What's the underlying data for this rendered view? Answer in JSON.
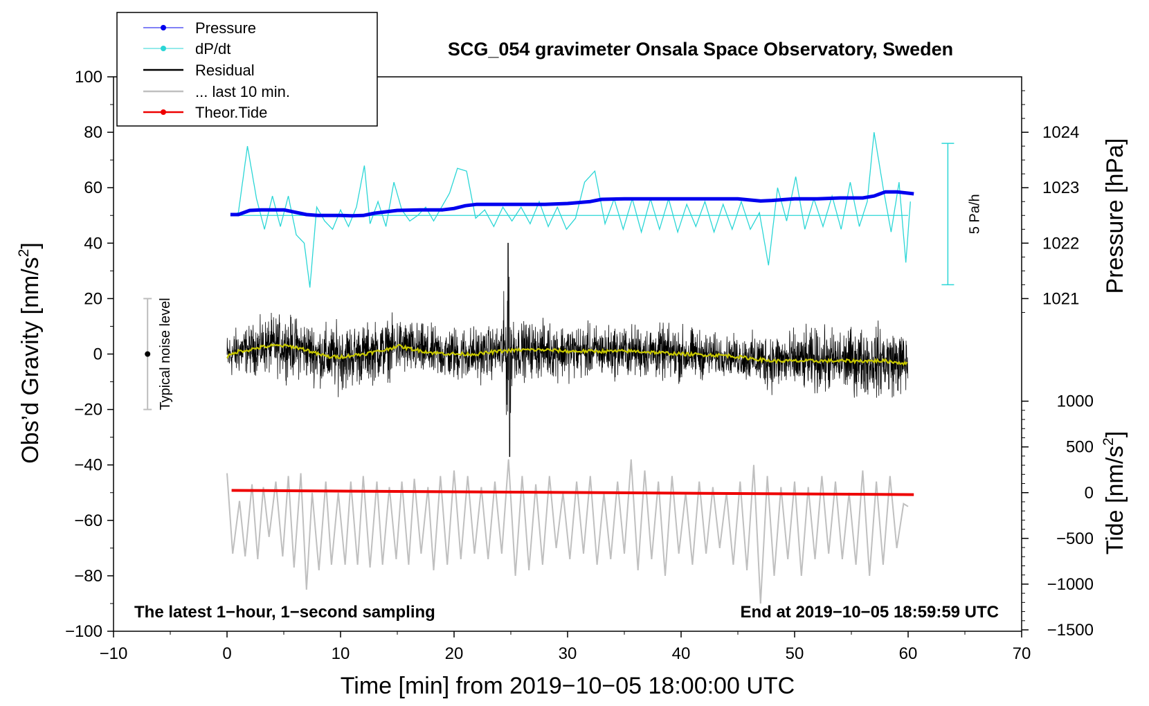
{
  "chart_data": {
    "type": "line",
    "title": "SCG_054 gravimeter Onsala Space Observatory, Sweden",
    "xlabel": "Time [min] from 2019−10−05 18:00:00 UTC",
    "ylabel_left_main": "Obs’d Gravity [nm/s",
    "ylabel_left_sup": "2",
    "ylabel_left_end": "]",
    "ylabel_right_pressure": "Pressure [hPa]",
    "ylabel_right_tide_main": "Tide [nm/s",
    "ylabel_right_tide_sup": "2",
    "ylabel_right_tide_end": "]",
    "note_left": "The latest 1−hour, 1−second sampling",
    "note_right": "End at 2019−10−05 18:59:59 UTC",
    "xlim": [
      -10,
      70
    ],
    "ylim": [
      -100,
      100
    ],
    "x_ticks": [
      "−10",
      "0",
      "10",
      "20",
      "30",
      "40",
      "50",
      "60",
      "70"
    ],
    "y_ticks": [
      "−100",
      "−80",
      "−60",
      "−40",
      "−20",
      "0",
      "20",
      "40",
      "60",
      "80",
      "100"
    ],
    "pressure_ticks": [
      "1021",
      "1022",
      "1023",
      "1024"
    ],
    "pressure_tick_values": [
      1021,
      1022,
      1023,
      1024
    ],
    "pressure_scale_note": "1 hPa spans 20 nm/s² on the left axis; 1021 hPa at 20",
    "tide_ticks": [
      "−1500",
      "−1000",
      "−500",
      "0",
      "500",
      "1000"
    ],
    "tide_tick_values": [
      -1500,
      -1000,
      -500,
      0,
      500,
      1000
    ],
    "tide_scale_note": "1000 nm/s² tide spans 33 nm/s² on the left axis; 0 tide at −50",
    "noise_label": "Typical noise level",
    "noise_range": [
      -20,
      20
    ],
    "rate_label": "5 Pa/h",
    "rate_range": [
      25,
      76
    ],
    "legend": [
      {
        "label": "Pressure",
        "color": "#0000ee",
        "marker": true
      },
      {
        "label": "dP/dt",
        "color": "#2ad6d6",
        "marker": true
      },
      {
        "label": "Residual",
        "color": "#000000",
        "marker": false
      },
      {
        "label": "... last 10 min.",
        "color": "#bfbfbf",
        "marker": false
      },
      {
        "label": "Theor.Tide",
        "color": "#ee0000",
        "marker": true
      }
    ],
    "series": [
      {
        "name": "Pressure",
        "color": "#0000ee",
        "x": [
          0.3,
          1,
          2,
          3,
          5,
          7,
          8,
          10,
          11,
          12,
          13,
          15,
          17,
          19,
          20,
          21,
          22,
          24,
          26,
          28,
          30,
          32,
          33,
          35,
          37,
          40,
          43,
          45,
          47,
          48,
          50,
          52,
          54,
          56,
          57,
          58,
          59,
          60.5
        ],
        "values": [
          50.3,
          50.3,
          51.8,
          52,
          52,
          50.3,
          50,
          50,
          49.9,
          50,
          50.8,
          51.8,
          52,
          52,
          52.5,
          53.5,
          54,
          54,
          54,
          54,
          54.3,
          55,
          55.8,
          56,
          56,
          56,
          56,
          56,
          55.2,
          55.4,
          56,
          56,
          56.3,
          56.3,
          57,
          58.5,
          58.5,
          57.8
        ]
      },
      {
        "name": "dP/dt",
        "color": "#2ad6d6",
        "baseline": 50,
        "x": [
          0.3,
          1.0,
          1.8,
          2.6,
          3.3,
          4.0,
          4.7,
          5.4,
          6.1,
          6.8,
          7.3,
          7.9,
          8.6,
          9.3,
          10.0,
          10.7,
          11.4,
          12.1,
          12.6,
          13.3,
          14.0,
          14.7,
          15.4,
          16.1,
          16.8,
          17.5,
          18.2,
          18.9,
          19.6,
          20.3,
          21.1,
          21.9,
          22.7,
          23.5,
          24.3,
          25.1,
          25.9,
          26.7,
          27.5,
          28.3,
          29.1,
          29.9,
          30.7,
          31.5,
          32.4,
          33.3,
          34.1,
          34.9,
          35.7,
          36.5,
          37.3,
          38.1,
          38.9,
          39.7,
          40.5,
          41.3,
          42.1,
          42.9,
          43.7,
          44.5,
          45.3,
          46.1,
          46.9,
          47.7,
          48.5,
          49.3,
          50.1,
          50.9,
          51.7,
          52.5,
          53.3,
          54.1,
          54.9,
          55.7,
          56.4,
          57.0,
          57.8,
          58.5,
          59.2,
          59.8,
          60.2
        ],
        "values": [
          50,
          51,
          75,
          56,
          45,
          57,
          46,
          57,
          43,
          40,
          24,
          53,
          48,
          45,
          52,
          46,
          53,
          68,
          47,
          55,
          46,
          62,
          52,
          48,
          50,
          53,
          48,
          53,
          58,
          67,
          66,
          49,
          52,
          46,
          53,
          48,
          53,
          47,
          55,
          46,
          53,
          45,
          49,
          62,
          66,
          47,
          56,
          45,
          56,
          44,
          56,
          45,
          56,
          44,
          54,
          46,
          55,
          44,
          54,
          45,
          55,
          45,
          51,
          32,
          60,
          48,
          64,
          45,
          56,
          46,
          57,
          45,
          62,
          46,
          55,
          80,
          60,
          44,
          62,
          33,
          55
        ]
      },
      {
        "name": "Residual",
        "color": "#000000",
        "x_range": [
          0,
          60
        ],
        "smooth_color": "#c8c800",
        "smooth_x": [
          0,
          1,
          2,
          3,
          4,
          5,
          6,
          7,
          8,
          9,
          10,
          12,
          14,
          15,
          16,
          18,
          20,
          22,
          24,
          26,
          28,
          30,
          33,
          36,
          40,
          44,
          46,
          48,
          50,
          52,
          54,
          56,
          58,
          60
        ],
        "smooth_values": [
          -1,
          1,
          1.5,
          2.5,
          3,
          3,
          2.5,
          1.5,
          0,
          -1,
          -1,
          0,
          1.5,
          3,
          2,
          0.5,
          0,
          0,
          1,
          1.5,
          1.5,
          1,
          1,
          1,
          0,
          -0.5,
          -1.5,
          -2.5,
          -2.5,
          -2.5,
          -2.5,
          -2.5,
          -2.5,
          -3.5
        ],
        "envelope_x": [
          0,
          2,
          4,
          6,
          8,
          10,
          12,
          14,
          16,
          18,
          20,
          22,
          24,
          24.7,
          25.5,
          27,
          30,
          33,
          36,
          40,
          42,
          44,
          46,
          48,
          50,
          52,
          54,
          56,
          58,
          60
        ],
        "envelope_values": [
          12,
          12,
          15,
          15,
          15,
          17,
          15,
          15,
          14,
          13,
          14,
          14,
          12,
          37,
          14,
          14,
          14,
          13,
          13,
          14,
          12,
          9,
          12,
          15,
          15,
          16,
          16,
          17,
          18,
          15
        ]
      },
      {
        "name": "... last 10 min.",
        "color": "#bfbfbf",
        "x": [
          0,
          0.5,
          1.1,
          1.6,
          2.2,
          2.7,
          3.2,
          3.7,
          4.3,
          4.9,
          5.4,
          5.9,
          6.5,
          7.0,
          7.5,
          8.1,
          8.7,
          9.2,
          9.8,
          10.4,
          10.9,
          11.5,
          12.0,
          12.6,
          13.2,
          13.7,
          14.3,
          14.9,
          15.4,
          16.0,
          16.5,
          17.1,
          17.7,
          18.2,
          18.8,
          19.4,
          20.0,
          20.6,
          21.2,
          21.8,
          22.4,
          23.0,
          23.6,
          24.2,
          24.8,
          25.4,
          26.0,
          26.6,
          27.2,
          27.8,
          28.4,
          29.0,
          29.6,
          30.2,
          30.8,
          31.4,
          32.0,
          32.6,
          33.2,
          33.8,
          34.4,
          35.0,
          35.6,
          36.2,
          36.8,
          37.4,
          38.0,
          38.6,
          39.2,
          39.8,
          40.4,
          41.0,
          41.6,
          42.2,
          42.8,
          43.4,
          44.0,
          44.6,
          45.2,
          45.8,
          46.4,
          47.0,
          47.6,
          48.2,
          48.8,
          49.4,
          50.0,
          50.6,
          51.2,
          51.8,
          52.4,
          53.0,
          53.6,
          54.2,
          54.8,
          55.4,
          56.0,
          56.6,
          57.2,
          57.8,
          58.4,
          59.0,
          59.6,
          60.0
        ],
        "values": [
          -43,
          -72,
          -53,
          -73,
          -47,
          -74,
          -48,
          -66,
          -46,
          -73,
          -44,
          -77,
          -43,
          -85,
          -50,
          -78,
          -46,
          -76,
          -50,
          -76,
          -46,
          -76,
          -44,
          -77,
          -46,
          -76,
          -48,
          -74,
          -46,
          -76,
          -45,
          -72,
          -48,
          -78,
          -44,
          -76,
          -42,
          -74,
          -44,
          -72,
          -48,
          -74,
          -46,
          -72,
          -38,
          -80,
          -44,
          -78,
          -47,
          -76,
          -44,
          -70,
          -50,
          -74,
          -46,
          -72,
          -44,
          -76,
          -50,
          -74,
          -46,
          -72,
          -38,
          -78,
          -42,
          -74,
          -46,
          -80,
          -44,
          -72,
          -50,
          -76,
          -46,
          -72,
          -48,
          -70,
          -50,
          -76,
          -46,
          -78,
          -40,
          -90,
          -44,
          -80,
          -48,
          -74,
          -46,
          -80,
          -48,
          -74,
          -44,
          -72,
          -46,
          -74,
          -50,
          -76,
          -42,
          -80,
          -46,
          -76,
          -44,
          -70,
          -54,
          -55
        ]
      },
      {
        "name": "Theor.Tide",
        "color": "#ee0000",
        "x": [
          0.4,
          60.5
        ],
        "values": [
          -49.2,
          -50.7
        ]
      }
    ]
  }
}
